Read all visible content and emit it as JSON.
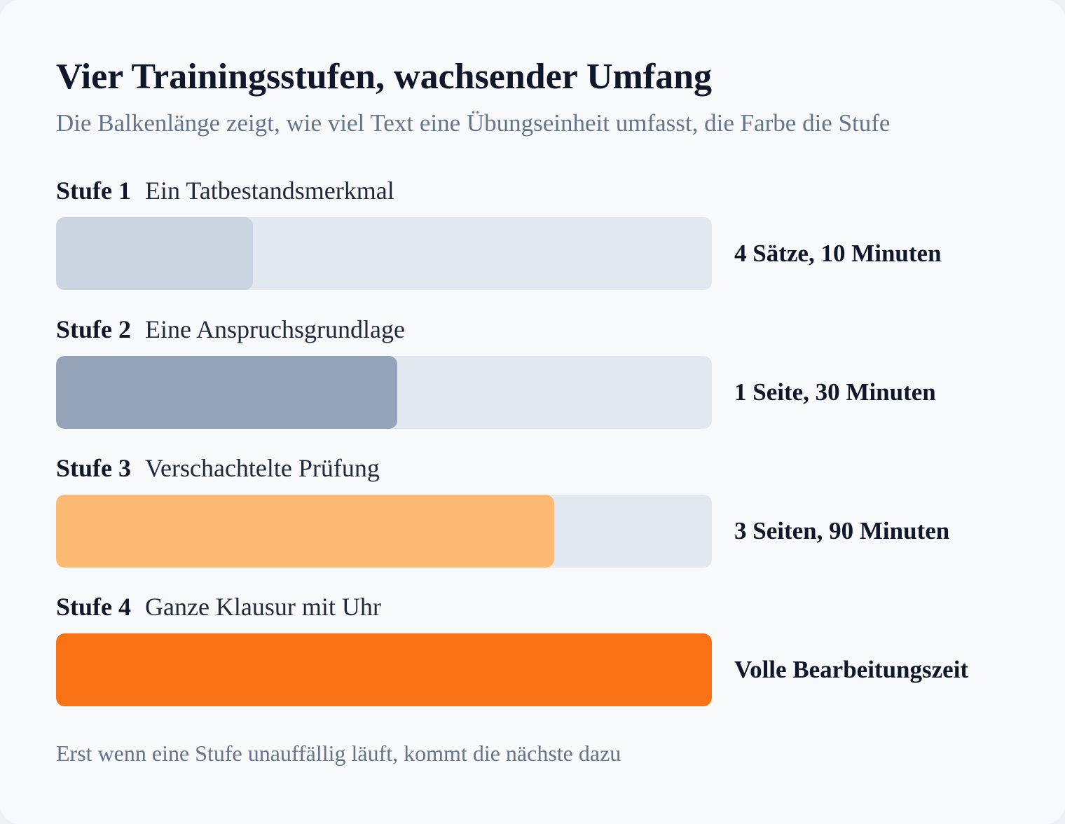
{
  "chart_data": {
    "type": "bar",
    "orientation": "horizontal",
    "title": "Vier Trainingsstufen, wachsender Umfang",
    "subtitle": "Die Balkenlänge zeigt, wie viel Text eine Übungseinheit umfasst, die Farbe die Stufe",
    "footnote": "Erst wenn eine Stufe unauffällig läuft, kommt die nächste dazu",
    "xlim": [
      0,
      1
    ],
    "grid": false,
    "legend": "none",
    "track_color": "#e2e8f0",
    "bars": [
      {
        "stage": "Stufe 1",
        "name": "Ein Tatbestandsmerkmal",
        "value": 0.3,
        "value_label": "4 Sätze, 10 Minuten",
        "color": "#cbd5e1"
      },
      {
        "stage": "Stufe 2",
        "name": "Eine Anspruchsgrundlage",
        "value": 0.52,
        "value_label": "1 Seite, 30 Minuten",
        "color": "#94a3b8"
      },
      {
        "stage": "Stufe 3",
        "name": "Verschachtelte Prüfung",
        "value": 0.76,
        "value_label": "3 Seiten, 90 Minuten",
        "color": "#fdba74"
      },
      {
        "stage": "Stufe 4",
        "name": "Ganze Klausur mit Uhr",
        "value": 1.0,
        "value_label": "Volle Bearbeitungszeit",
        "color": "#f97316"
      }
    ]
  }
}
